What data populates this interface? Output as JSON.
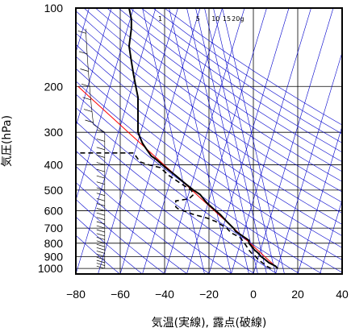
{
  "chart_data": {
    "type": "line",
    "title": "",
    "xlabel": "気温(実線), 露点(破線)",
    "ylabel": "気圧(hPa)",
    "xlim": [
      -80,
      40
    ],
    "ylim": [
      1050,
      100
    ],
    "y_scale": "log",
    "grid": true,
    "x_ticks": [
      -80,
      -60,
      -40,
      -20,
      0,
      20,
      40
    ],
    "x_tick_labels": [
      "−80",
      "−60",
      "−40",
      "−20",
      "0",
      "20",
      "40"
    ],
    "y_ticks": [
      100,
      200,
      300,
      400,
      500,
      600,
      700,
      800,
      900,
      1000
    ],
    "y_tick_labels": [
      "100",
      "200",
      "300",
      "400",
      "500",
      "600",
      "700",
      "800",
      "900",
      "1000"
    ],
    "mixing_ratio_labels": [
      "1",
      "5",
      "10",
      "15",
      "20g"
    ],
    "series": [
      {
        "role": "temperature",
        "style": "solid",
        "points": [
          [
            11,
            1000
          ],
          [
            10,
            980
          ],
          [
            7,
            950
          ],
          [
            5,
            920
          ],
          [
            3.5,
            900
          ],
          [
            2,
            870
          ],
          [
            0.5,
            850
          ],
          [
            -2,
            800
          ],
          [
            -2,
            780
          ],
          [
            -4,
            760
          ],
          [
            -8,
            720
          ],
          [
            -9,
            700
          ],
          [
            -12,
            660
          ],
          [
            -15,
            620
          ],
          [
            -17,
            600
          ],
          [
            -21,
            560
          ],
          [
            -24,
            520
          ],
          [
            -27,
            500
          ],
          [
            -31,
            470
          ],
          [
            -35,
            440
          ],
          [
            -38,
            420
          ],
          [
            -41,
            400
          ],
          [
            -44,
            380
          ],
          [
            -46,
            370
          ],
          [
            -48,
            350
          ],
          [
            -50,
            330
          ],
          [
            -52,
            300
          ],
          [
            -52,
            280
          ],
          [
            -52,
            250
          ],
          [
            -52,
            220
          ],
          [
            -53,
            200
          ],
          [
            -54,
            180
          ],
          [
            -55,
            160
          ],
          [
            -56,
            140
          ],
          [
            -55,
            120
          ],
          [
            -55,
            110
          ],
          [
            -56,
            100
          ]
        ]
      },
      {
        "role": "dewpoint",
        "style": "dashed",
        "points": [
          [
            8,
            1000
          ],
          [
            6,
            980
          ],
          [
            4,
            950
          ],
          [
            2,
            920
          ],
          [
            1,
            900
          ],
          [
            -1,
            870
          ],
          [
            -2,
            850
          ],
          [
            -4,
            800
          ],
          [
            -5,
            780
          ],
          [
            -6,
            760
          ],
          [
            -10,
            730
          ],
          [
            -12,
            700
          ],
          [
            -17,
            660
          ],
          [
            -21,
            640
          ],
          [
            -27,
            620
          ],
          [
            -34,
            590
          ],
          [
            -35,
            580
          ],
          [
            -35,
            550
          ],
          [
            -29,
            540
          ],
          [
            -27,
            520
          ],
          [
            -28,
            500
          ],
          [
            -33,
            470
          ],
          [
            -38,
            440
          ],
          [
            -42,
            410
          ],
          [
            -47,
            400
          ],
          [
            -51,
            390
          ],
          [
            -52,
            380
          ],
          [
            -53,
            370
          ],
          [
            -54,
            360
          ],
          [
            -70,
            360
          ],
          [
            -80,
            360
          ]
        ]
      }
    ],
    "reference_lines": {
      "dry_adiabat_color": "#0000cc",
      "mixing_ratio_color": "#0000cc",
      "parcel_curve_color": "#ff0000"
    },
    "wind_barbs": {
      "position": "left",
      "color": "#000000"
    }
  }
}
